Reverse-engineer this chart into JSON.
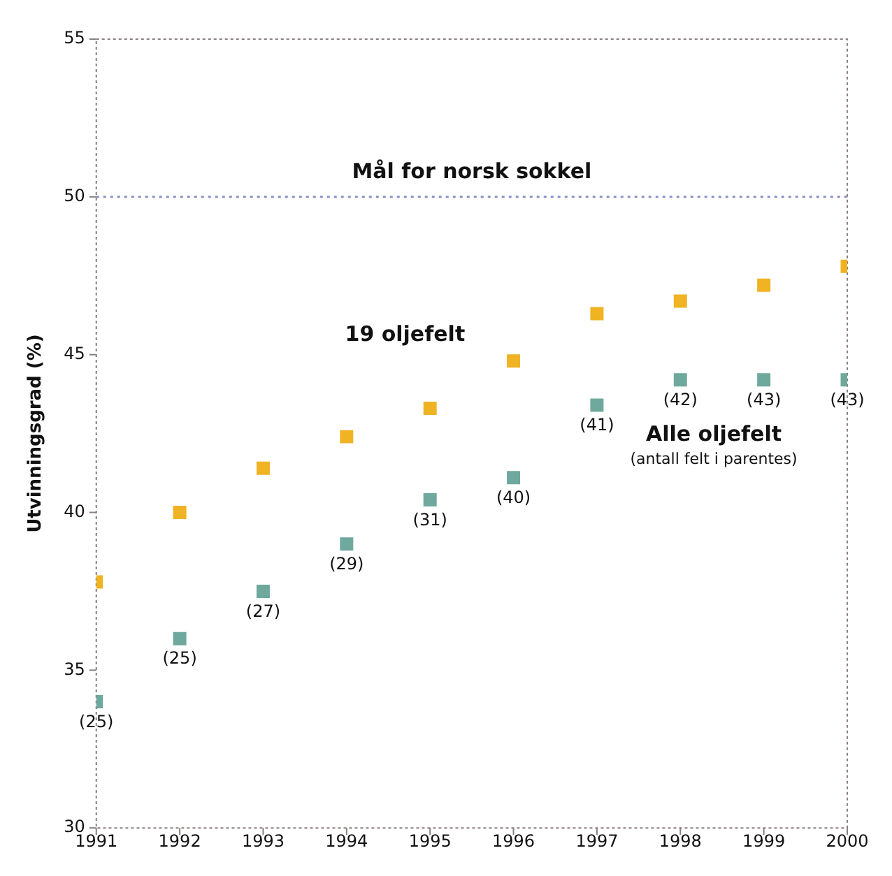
{
  "chart_data": {
    "type": "scatter",
    "ylabel": "Utvinningsgrad (%)",
    "x": [
      1991,
      1992,
      1993,
      1994,
      1995,
      1996,
      1997,
      1998,
      1999,
      2000
    ],
    "xlim": [
      1991,
      2000
    ],
    "xticks": [
      1991,
      1992,
      1993,
      1994,
      1995,
      1996,
      1997,
      1998,
      1999,
      2000
    ],
    "ylim": [
      30,
      55
    ],
    "yticks": [
      30,
      35,
      40,
      45,
      50,
      55
    ],
    "grid": false,
    "legend": false,
    "marker": "square",
    "series": [
      {
        "name": "19 oljefelt",
        "color": "#f0b323",
        "values": [
          37.8,
          40.0,
          41.4,
          42.4,
          43.3,
          44.8,
          46.3,
          46.7,
          47.2,
          47.8
        ]
      },
      {
        "name": "Alle oljefelt",
        "color": "#6fa89c",
        "values": [
          34.0,
          36.0,
          37.5,
          39.0,
          40.4,
          41.1,
          43.4,
          44.2,
          44.2,
          44.2
        ]
      }
    ],
    "ref_lines": [
      {
        "axis": "y",
        "value": 50,
        "label": "Mål for norsk sokkel",
        "color": "#8a8fc8",
        "line_style": "dotted"
      }
    ],
    "annotations": [
      "(antall felt i parentes)",
      {
        "text": "(25)",
        "x": 1991,
        "y": 34.0
      },
      {
        "text": "(25)",
        "x": 1992,
        "y": 36.0
      },
      {
        "text": "(27)",
        "x": 1993,
        "y": 37.5
      },
      {
        "text": "(29)",
        "x": 1994,
        "y": 39.0
      },
      {
        "text": "(31)",
        "x": 1995,
        "y": 40.4
      },
      {
        "text": "(40)",
        "x": 1996,
        "y": 41.1
      },
      {
        "text": "(41)",
        "x": 1997,
        "y": 43.4
      },
      {
        "text": "(42)",
        "x": 1998,
        "y": 44.2
      },
      {
        "text": "(43)",
        "x": 1999,
        "y": 44.2
      },
      {
        "text": "(43)",
        "x": 2000,
        "y": 44.2
      }
    ]
  }
}
